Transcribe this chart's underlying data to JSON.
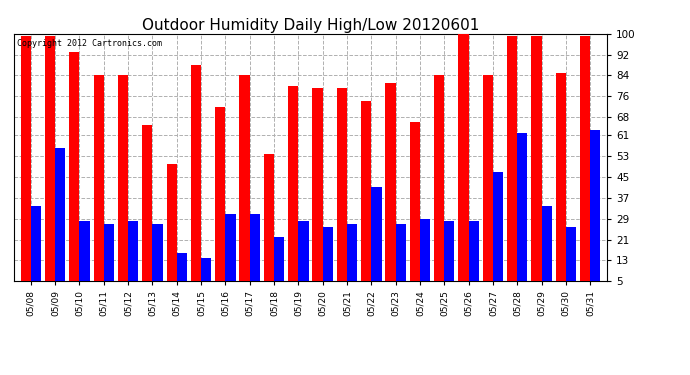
{
  "title": "Outdoor Humidity Daily High/Low 20120601",
  "copyright": "Copyright 2012 Cartronics.com",
  "dates": [
    "05/08",
    "05/09",
    "05/10",
    "05/11",
    "05/12",
    "05/13",
    "05/14",
    "05/15",
    "05/16",
    "05/17",
    "05/18",
    "05/19",
    "05/20",
    "05/21",
    "05/22",
    "05/23",
    "05/24",
    "05/25",
    "05/26",
    "05/27",
    "05/28",
    "05/29",
    "05/30",
    "05/31"
  ],
  "high": [
    99,
    99,
    93,
    84,
    84,
    65,
    50,
    88,
    72,
    84,
    54,
    80,
    79,
    79,
    74,
    81,
    66,
    84,
    100,
    84,
    99,
    99,
    85,
    99
  ],
  "low": [
    34,
    56,
    28,
    27,
    28,
    27,
    16,
    14,
    31,
    31,
    22,
    28,
    26,
    27,
    41,
    27,
    29,
    28,
    28,
    47,
    62,
    34,
    26,
    63
  ],
  "high_color": "#ff0000",
  "low_color": "#0000ff",
  "bg_color": "#ffffff",
  "plot_bg_color": "#ffffff",
  "grid_color": "#b0b0b0",
  "ymin": 5,
  "ymax": 100,
  "yticks": [
    5,
    13,
    21,
    29,
    37,
    45,
    53,
    61,
    68,
    76,
    84,
    92,
    100
  ],
  "title_fontsize": 11,
  "bar_width": 0.42,
  "figwidth": 6.9,
  "figheight": 3.75,
  "dpi": 100
}
